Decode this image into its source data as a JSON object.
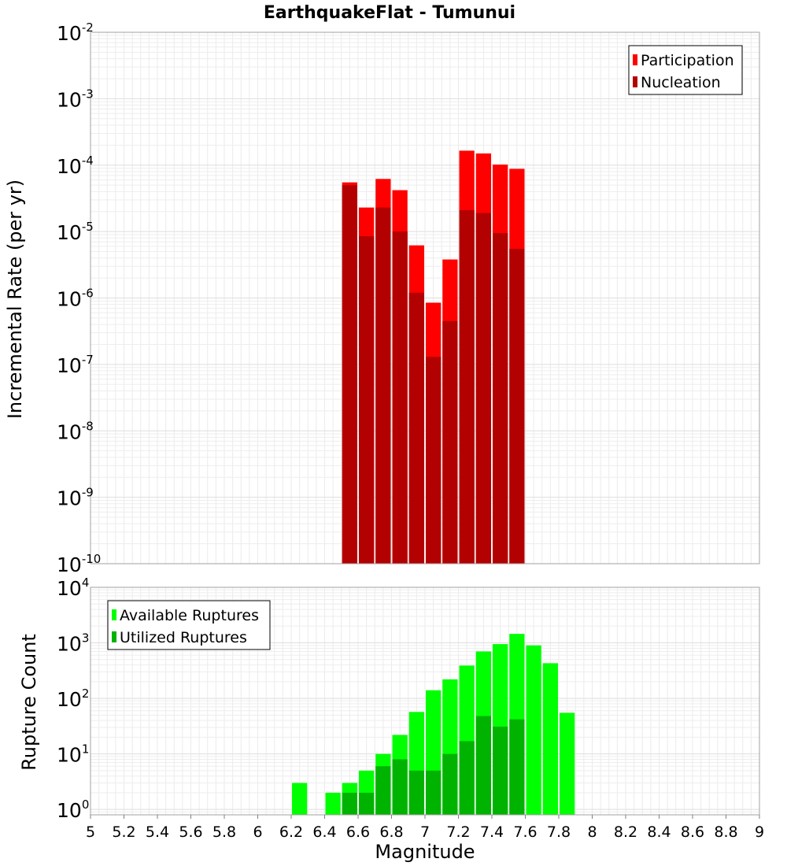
{
  "title": "EarthquakeFlat - Tumunui",
  "xlabel": "Magnitude",
  "x_ticks": [
    "5",
    "5.2",
    "5.4",
    "5.6",
    "5.8",
    "6",
    "6.2",
    "6.4",
    "6.6",
    "6.8",
    "7",
    "7.2",
    "7.4",
    "7.6",
    "7.8",
    "8",
    "8.2",
    "8.4",
    "8.6",
    "8.8",
    "9"
  ],
  "chart_data": [
    {
      "type": "bar",
      "panel": "top",
      "ylabel": "Incremental Rate (per yr)",
      "yscale": "log",
      "ylim": [
        1e-10,
        0.01
      ],
      "xlim": [
        5,
        9
      ],
      "bin_width": 0.1,
      "y_ticks": [
        {
          "base": "10",
          "exp": "-10"
        },
        {
          "base": "10",
          "exp": "-9"
        },
        {
          "base": "10",
          "exp": "-8"
        },
        {
          "base": "10",
          "exp": "-7"
        },
        {
          "base": "10",
          "exp": "-6"
        },
        {
          "base": "10",
          "exp": "-5"
        },
        {
          "base": "10",
          "exp": "-4"
        },
        {
          "base": "10",
          "exp": "-3"
        },
        {
          "base": "10",
          "exp": "-2"
        }
      ],
      "grid": true,
      "legend_position": "top-right",
      "series": [
        {
          "name": "Participation",
          "color": "#ff0000",
          "x": [
            6.55,
            6.65,
            6.75,
            6.85,
            6.95,
            7.05,
            7.15,
            7.25,
            7.35,
            7.45,
            7.55
          ],
          "values": [
            5.5e-05,
            2.3e-05,
            6.2e-05,
            4.2e-05,
            6.2e-06,
            8.5e-07,
            3.8e-06,
            0.000165,
            0.00015,
            0.000102,
            8.8e-05
          ]
        },
        {
          "name": "Nucleation",
          "color": "#b30000",
          "x": [
            6.55,
            6.65,
            6.75,
            6.85,
            6.95,
            7.05,
            7.15,
            7.25,
            7.35,
            7.45,
            7.55
          ],
          "values": [
            5e-05,
            8.5e-06,
            2.3e-05,
            1e-05,
            1.2e-06,
            1.3e-07,
            4.5e-07,
            2.1e-05,
            1.9e-05,
            9.5e-06,
            5.5e-06
          ]
        }
      ]
    },
    {
      "type": "bar",
      "panel": "bottom",
      "ylabel": "Rupture Count",
      "yscale": "log",
      "ylim": [
        0.8,
        10000
      ],
      "xlim": [
        5,
        9
      ],
      "bin_width": 0.1,
      "y_ticks": [
        {
          "value": 1,
          "base": "10",
          "exp": "0"
        },
        {
          "value": 10,
          "base": "10",
          "exp": "1"
        },
        {
          "value": 100,
          "base": "10",
          "exp": "2"
        },
        {
          "value": 1000,
          "base": "10",
          "exp": "3"
        },
        {
          "value": 10000,
          "base": "10",
          "exp": "4"
        }
      ],
      "grid": true,
      "legend_position": "top-left",
      "series": [
        {
          "name": "Available Ruptures",
          "color": "#00ff00",
          "x": [
            6.25,
            6.45,
            6.55,
            6.65,
            6.75,
            6.85,
            6.95,
            7.05,
            7.15,
            7.25,
            7.35,
            7.45,
            7.55,
            7.65,
            7.75,
            7.85
          ],
          "values": [
            3,
            2,
            3,
            5,
            10,
            22,
            57,
            140,
            220,
            390,
            700,
            950,
            1450,
            900,
            430,
            55
          ]
        },
        {
          "name": "Utilized Ruptures",
          "color": "#00b300",
          "x": [
            6.55,
            6.65,
            6.75,
            6.85,
            6.95,
            7.05,
            7.15,
            7.25,
            7.35,
            7.45,
            7.55
          ],
          "values": [
            2,
            2,
            6,
            8,
            5,
            5,
            10,
            17,
            48,
            31,
            42
          ]
        }
      ]
    }
  ]
}
